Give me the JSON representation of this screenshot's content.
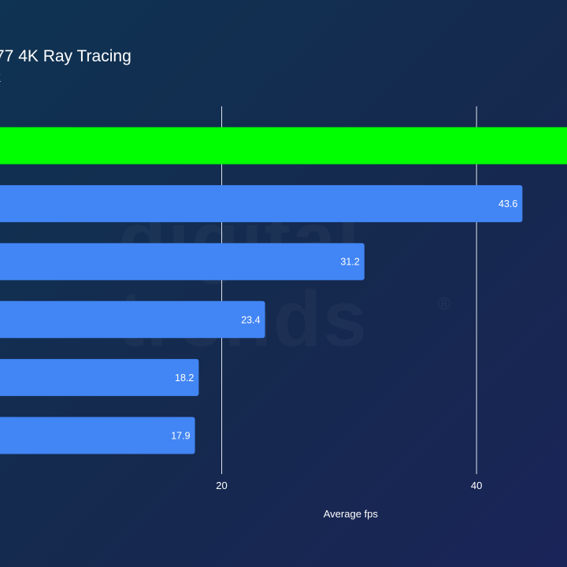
{
  "chart_data": {
    "type": "bar",
    "orientation": "horizontal",
    "title": "77 4K Ray Tracing",
    "subtitle": "K",
    "xlabel": "Average fps",
    "ylabel": "",
    "categories": [
      "",
      "",
      "",
      "",
      "",
      ""
    ],
    "values": [
      null,
      43.6,
      31.2,
      23.4,
      18.2,
      17.9
    ],
    "value_labels": [
      "",
      "43.6",
      "31.2",
      "23.4",
      "18.2",
      "17.9"
    ],
    "x_ticks": [
      20,
      40
    ],
    "x_tick_labels": [
      "20",
      "40"
    ],
    "xlim": [
      2.6,
      47.1
    ],
    "grid": "vertical",
    "legend": "none",
    "colors": {
      "highlight": "#00ff00",
      "bar": "#4285f4",
      "grid": "#dfe4ec",
      "background_start": "#0f3352",
      "background_end": "#1a2458"
    },
    "highlighted_index": 0,
    "highlighted_exceeds_axis": true
  },
  "watermark": {
    "lines": [
      "digital",
      "trends"
    ],
    "mark": "®"
  }
}
